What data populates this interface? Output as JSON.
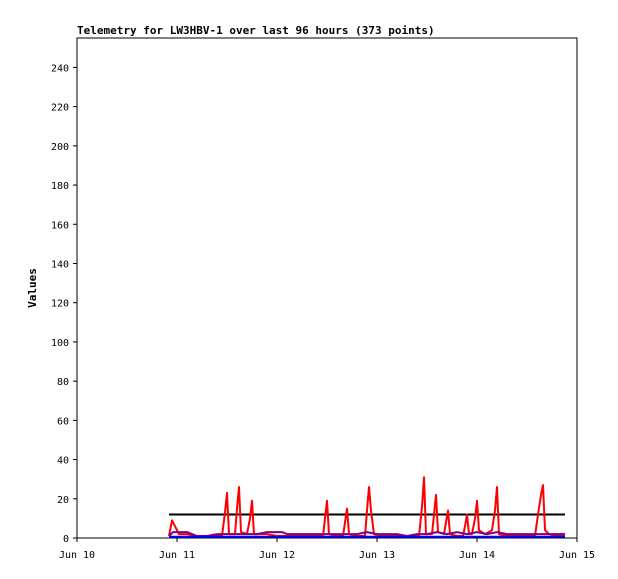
{
  "chart_data": {
    "type": "line",
    "title": "Telemetry for LW3HBV-1 over last 96 hours (373 points)",
    "xlabel": "",
    "ylabel": "Values",
    "x_tick_labels": [
      "Jun 10",
      "Jun 11",
      "Jun 12",
      "Jun 13",
      "Jun 14",
      "Jun 15"
    ],
    "x_ticks": [
      0,
      1,
      2,
      3,
      4,
      5
    ],
    "xlim": [
      0,
      5
    ],
    "ylim": [
      0,
      255
    ],
    "y_ticks": [
      0,
      20,
      40,
      60,
      80,
      100,
      120,
      140,
      160,
      180,
      200,
      220,
      240
    ],
    "grid": false,
    "legend": "none",
    "series": [
      {
        "color": "#000000",
        "points": [
          [
            0.92,
            12
          ],
          [
            4.88,
            12
          ]
        ]
      },
      {
        "color": "#ff0000",
        "points": [
          [
            0.92,
            1
          ],
          [
            0.95,
            9
          ],
          [
            0.98,
            6
          ],
          [
            1.02,
            2
          ],
          [
            1.1,
            2
          ],
          [
            1.2,
            1
          ],
          [
            1.3,
            1
          ],
          [
            1.4,
            1
          ],
          [
            1.45,
            1
          ],
          [
            1.48,
            13
          ],
          [
            1.5,
            23
          ],
          [
            1.52,
            2
          ],
          [
            1.58,
            2
          ],
          [
            1.6,
            15
          ],
          [
            1.62,
            26
          ],
          [
            1.64,
            3
          ],
          [
            1.7,
            2
          ],
          [
            1.73,
            10
          ],
          [
            1.75,
            19
          ],
          [
            1.77,
            2
          ],
          [
            1.9,
            2
          ],
          [
            2.0,
            1
          ],
          [
            2.1,
            1
          ],
          [
            2.2,
            1
          ],
          [
            2.3,
            1
          ],
          [
            2.4,
            1
          ],
          [
            2.46,
            1
          ],
          [
            2.48,
            10
          ],
          [
            2.5,
            19
          ],
          [
            2.52,
            2
          ],
          [
            2.6,
            1
          ],
          [
            2.66,
            1
          ],
          [
            2.68,
            8
          ],
          [
            2.7,
            15
          ],
          [
            2.72,
            2
          ],
          [
            2.8,
            1
          ],
          [
            2.88,
            1
          ],
          [
            2.9,
            14
          ],
          [
            2.92,
            26
          ],
          [
            2.94,
            14
          ],
          [
            2.97,
            2
          ],
          [
            3.05,
            1
          ],
          [
            3.15,
            1
          ],
          [
            3.3,
            1
          ],
          [
            3.42,
            1
          ],
          [
            3.45,
            16
          ],
          [
            3.47,
            31
          ],
          [
            3.49,
            2
          ],
          [
            3.55,
            2
          ],
          [
            3.57,
            12
          ],
          [
            3.59,
            22
          ],
          [
            3.61,
            3
          ],
          [
            3.67,
            2
          ],
          [
            3.69,
            8
          ],
          [
            3.71,
            14
          ],
          [
            3.73,
            2
          ],
          [
            3.8,
            1
          ],
          [
            3.86,
            1
          ],
          [
            3.88,
            6
          ],
          [
            3.9,
            12
          ],
          [
            3.92,
            2
          ],
          [
            3.95,
            2
          ],
          [
            3.98,
            10
          ],
          [
            4.0,
            19
          ],
          [
            4.02,
            4
          ],
          [
            4.08,
            2
          ],
          [
            4.15,
            4
          ],
          [
            4.18,
            14
          ],
          [
            4.2,
            26
          ],
          [
            4.22,
            2
          ],
          [
            4.3,
            1
          ],
          [
            4.4,
            1
          ],
          [
            4.5,
            1
          ],
          [
            4.58,
            1
          ],
          [
            4.61,
            12
          ],
          [
            4.64,
            22
          ],
          [
            4.66,
            27
          ],
          [
            4.68,
            4
          ],
          [
            4.72,
            2
          ],
          [
            4.8,
            1
          ],
          [
            4.88,
            1
          ]
        ]
      },
      {
        "color": "#800080",
        "points": [
          [
            0.92,
            1
          ],
          [
            0.96,
            3
          ],
          [
            1.0,
            3
          ],
          [
            1.1,
            3
          ],
          [
            1.15,
            2
          ],
          [
            1.2,
            1
          ],
          [
            1.3,
            1
          ],
          [
            1.4,
            2
          ],
          [
            1.5,
            2
          ],
          [
            1.6,
            2
          ],
          [
            1.7,
            2
          ],
          [
            1.8,
            2
          ],
          [
            1.9,
            3
          ],
          [
            2.0,
            3
          ],
          [
            2.05,
            3
          ],
          [
            2.1,
            2
          ],
          [
            2.2,
            2
          ],
          [
            2.4,
            2
          ],
          [
            2.6,
            2
          ],
          [
            2.8,
            2
          ],
          [
            2.9,
            3
          ],
          [
            3.0,
            2
          ],
          [
            3.1,
            2
          ],
          [
            3.2,
            2
          ],
          [
            3.3,
            1
          ],
          [
            3.4,
            2
          ],
          [
            3.5,
            2
          ],
          [
            3.6,
            3
          ],
          [
            3.7,
            2
          ],
          [
            3.8,
            3
          ],
          [
            3.9,
            2
          ],
          [
            4.0,
            3
          ],
          [
            4.1,
            2
          ],
          [
            4.2,
            3
          ],
          [
            4.3,
            2
          ],
          [
            4.4,
            2
          ],
          [
            4.5,
            2
          ],
          [
            4.6,
            2
          ],
          [
            4.7,
            2
          ],
          [
            4.8,
            2
          ],
          [
            4.88,
            2
          ]
        ]
      },
      {
        "color": "#0000ff",
        "points": [
          [
            0.92,
            0.6
          ],
          [
            4.88,
            0.6
          ]
        ]
      }
    ]
  }
}
